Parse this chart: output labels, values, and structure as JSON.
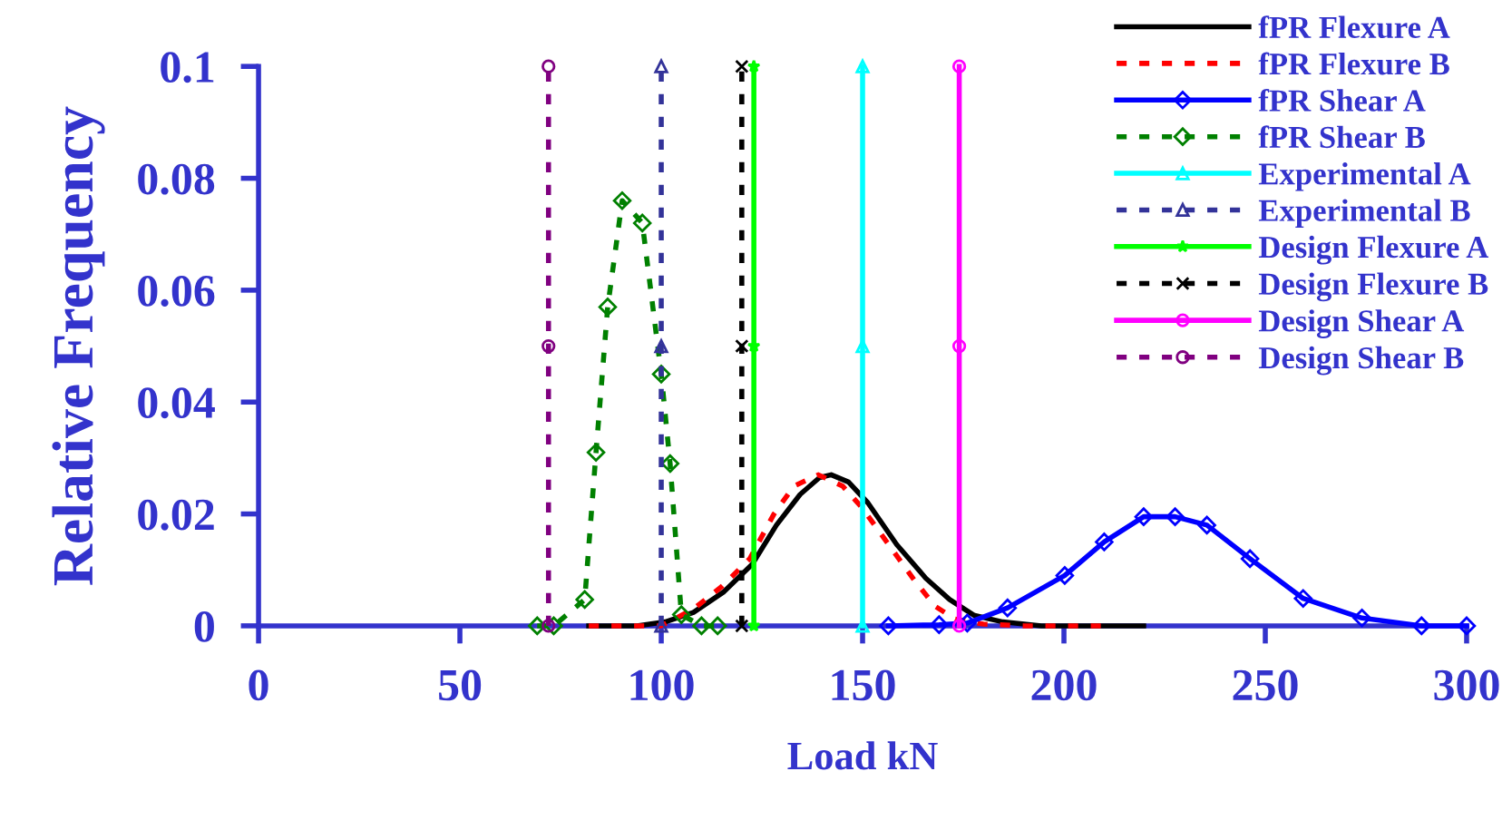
{
  "chart_data": {
    "type": "line",
    "xlabel": "Load kN",
    "ylabel": "Relative Frequency",
    "xlim": [
      0,
      300
    ],
    "ylim": [
      0,
      0.1
    ],
    "xticks": [
      0,
      50,
      100,
      150,
      200,
      250,
      300
    ],
    "yticks": [
      0,
      0.02,
      0.04,
      0.06,
      0.08,
      0.1
    ],
    "grid": false,
    "legend": "top right",
    "series": [
      {
        "name": "fPR Flexure A",
        "color": "#000000",
        "line_style": "solid",
        "marker": "none",
        "x": [
          82,
          94,
          101,
          108,
          115.4,
          122.6,
          128.6,
          134.5,
          139.3,
          142.2,
          146.5,
          151.3,
          158.5,
          165.7,
          171.6,
          177.6,
          184.8,
          194.4,
          219.8
        ],
        "values": [
          0,
          0,
          0.0007,
          0.0024,
          0.006,
          0.011,
          0.018,
          0.0235,
          0.0265,
          0.027,
          0.0257,
          0.022,
          0.0145,
          0.0085,
          0.0047,
          0.0019,
          0.0007,
          0,
          0
        ]
      },
      {
        "name": "fPR Flexure B",
        "color": "#ff0000",
        "line_style": "dashed",
        "marker": "none",
        "x": [
          82,
          100,
          108,
          115,
          122,
          128,
          133,
          139,
          145,
          150,
          157,
          163,
          168,
          173,
          180,
          190,
          210
        ],
        "values": [
          0,
          0,
          0.003,
          0.007,
          0.012,
          0.02,
          0.025,
          0.027,
          0.025,
          0.021,
          0.014,
          0.008,
          0.0035,
          0.0012,
          0.0003,
          0,
          0
        ]
      },
      {
        "name": "fPR Shear A",
        "color": "#0000ff",
        "line_style": "solid",
        "marker": "diamond",
        "x": [
          156.4,
          169,
          176,
          186,
          200.2,
          210,
          219.8,
          227.6,
          235.5,
          246.2,
          259.4,
          274,
          288.8,
          300
        ],
        "values": [
          0,
          0.0002,
          0.0005,
          0.0032,
          0.009,
          0.015,
          0.0195,
          0.0195,
          0.018,
          0.012,
          0.0049,
          0.0014,
          0,
          0
        ]
      },
      {
        "name": "fPR Shear B",
        "color": "#008000",
        "line_style": "dashed",
        "marker": "diamond",
        "x": [
          69.2,
          73.3,
          81,
          83.8,
          86.7,
          90.3,
          95.3,
          100,
          102.2,
          105,
          110,
          114
        ],
        "values": [
          0,
          0,
          0.0047,
          0.031,
          0.057,
          0.076,
          0.072,
          0.045,
          0.029,
          0.002,
          0,
          0
        ]
      },
      {
        "name": "Experimental A",
        "color": "#00ffff",
        "line_style": "solid",
        "marker": "triangle",
        "x": [
          150,
          150,
          150
        ],
        "values": [
          0,
          0.05,
          0.1
        ]
      },
      {
        "name": "Experimental B",
        "color": "#333399",
        "line_style": "dashed",
        "marker": "triangle",
        "x": [
          100,
          100,
          100
        ],
        "values": [
          0,
          0.05,
          0.1
        ]
      },
      {
        "name": "Design Flexure A",
        "color": "#00ff00",
        "line_style": "solid",
        "marker": "star",
        "x": [
          123,
          123,
          123
        ],
        "values": [
          0,
          0.05,
          0.1
        ]
      },
      {
        "name": "Design Flexure B",
        "color": "#000000",
        "line_style": "dashed",
        "marker": "cross",
        "x": [
          120,
          120,
          120
        ],
        "values": [
          0,
          0.05,
          0.1
        ]
      },
      {
        "name": "Design Shear A",
        "color": "#ff00ff",
        "line_style": "solid",
        "marker": "circle",
        "x": [
          174,
          174,
          174
        ],
        "values": [
          0,
          0.05,
          0.1
        ]
      },
      {
        "name": "Design Shear B",
        "color": "#800080",
        "line_style": "dashed",
        "marker": "circle",
        "x": [
          72,
          72,
          72
        ],
        "values": [
          0,
          0.05,
          0.1
        ]
      }
    ]
  }
}
